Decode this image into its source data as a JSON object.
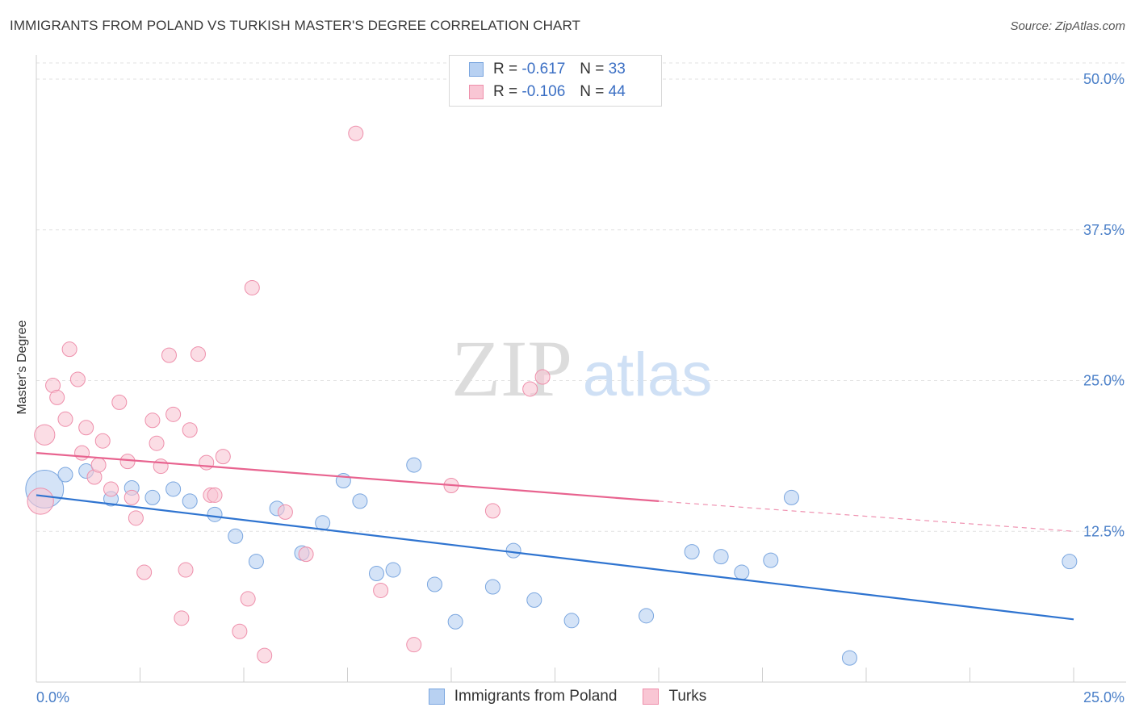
{
  "title": "IMMIGRANTS FROM POLAND VS TURKISH MASTER'S DEGREE CORRELATION CHART",
  "source": "Source: ZipAtlas.com",
  "watermark": {
    "zip": "ZIP",
    "atlas": "atlas"
  },
  "legend_top": [
    {
      "r_label": "R =",
      "r_value": "-0.617",
      "n_label": "N =",
      "n_value": "33",
      "color": "#b8d1f2",
      "border": "#7aa6df"
    },
    {
      "r_label": "R =",
      "r_value": "-0.106",
      "n_label": "N =",
      "n_value": "44",
      "color": "#f9c6d4",
      "border": "#ee8fab"
    }
  ],
  "chart_data": {
    "type": "scatter",
    "title": "IMMIGRANTS FROM POLAND VS TURKISH MASTER'S DEGREE CORRELATION CHART",
    "xlabel": "",
    "ylabel": "Master's Degree",
    "xlim": [
      0,
      25
    ],
    "ylim": [
      0,
      50
    ],
    "x_tick_labels": [
      "0.0%",
      "25.0%"
    ],
    "y_ticks": [
      12.5,
      25.0,
      37.5,
      50.0
    ],
    "y_tick_labels": [
      "12.5%",
      "25.0%",
      "37.5%",
      "50.0%"
    ],
    "grid": true,
    "series": [
      {
        "name": "Immigrants from Poland",
        "color": "#b8d1f2",
        "stroke": "#7aa6df",
        "line_color": "#2f74d0",
        "trend": {
          "x": [
            0,
            25
          ],
          "y": [
            15.5,
            5.2
          ]
        },
        "points": [
          [
            0.2,
            16.0,
            2.6
          ],
          [
            0.7,
            17.2,
            1
          ],
          [
            1.2,
            17.5,
            1
          ],
          [
            1.8,
            15.2,
            1
          ],
          [
            2.3,
            16.1,
            1
          ],
          [
            2.8,
            15.3,
            1
          ],
          [
            3.3,
            16.0,
            1
          ],
          [
            3.7,
            15.0,
            1
          ],
          [
            4.3,
            13.9,
            1
          ],
          [
            4.8,
            12.1,
            1
          ],
          [
            5.3,
            10.0,
            1
          ],
          [
            5.8,
            14.4,
            1
          ],
          [
            6.4,
            10.7,
            1
          ],
          [
            6.9,
            13.2,
            1
          ],
          [
            7.4,
            16.7,
            1
          ],
          [
            7.8,
            15.0,
            1
          ],
          [
            8.2,
            9.0,
            1
          ],
          [
            8.6,
            9.3,
            1
          ],
          [
            9.1,
            18.0,
            1
          ],
          [
            9.6,
            8.1,
            1
          ],
          [
            10.1,
            5.0,
            1
          ],
          [
            11.0,
            7.9,
            1
          ],
          [
            11.5,
            10.9,
            1
          ],
          [
            12.0,
            6.8,
            1
          ],
          [
            12.9,
            5.1,
            1
          ],
          [
            14.7,
            5.5,
            1
          ],
          [
            15.8,
            10.8,
            1
          ],
          [
            16.5,
            10.4,
            1
          ],
          [
            17.0,
            9.1,
            1
          ],
          [
            17.7,
            10.1,
            1
          ],
          [
            18.2,
            15.3,
            1
          ],
          [
            19.6,
            2.0,
            1
          ],
          [
            24.9,
            10.0,
            1
          ]
        ]
      },
      {
        "name": "Turks",
        "color": "#f9c6d4",
        "stroke": "#ee8fab",
        "line_color": "#e8638f",
        "trend": {
          "x": [
            0,
            15
          ],
          "y": [
            19.0,
            15.0
          ]
        },
        "trend_dashed": {
          "x": [
            15,
            25
          ],
          "y": [
            15.0,
            12.5
          ]
        },
        "points": [
          [
            0.1,
            15.0,
            1.8
          ],
          [
            0.2,
            20.5,
            1.4
          ],
          [
            0.4,
            24.6,
            1
          ],
          [
            0.5,
            23.6,
            1
          ],
          [
            0.7,
            21.8,
            1
          ],
          [
            0.8,
            27.6,
            1
          ],
          [
            1.0,
            25.1,
            1
          ],
          [
            1.1,
            19.0,
            1
          ],
          [
            1.2,
            21.1,
            1
          ],
          [
            1.4,
            17.0,
            1
          ],
          [
            1.5,
            18.0,
            1
          ],
          [
            1.6,
            20.0,
            1
          ],
          [
            1.8,
            16.0,
            1
          ],
          [
            2.0,
            23.2,
            1
          ],
          [
            2.2,
            18.3,
            1
          ],
          [
            2.3,
            15.3,
            1
          ],
          [
            2.4,
            13.6,
            1
          ],
          [
            2.6,
            9.1,
            1
          ],
          [
            2.8,
            21.7,
            1
          ],
          [
            2.9,
            19.8,
            1
          ],
          [
            3.0,
            17.9,
            1
          ],
          [
            3.2,
            27.1,
            1
          ],
          [
            3.3,
            22.2,
            1
          ],
          [
            3.5,
            5.3,
            1
          ],
          [
            3.6,
            9.3,
            1
          ],
          [
            3.7,
            20.9,
            1
          ],
          [
            3.9,
            27.2,
            1
          ],
          [
            4.1,
            18.2,
            1
          ],
          [
            4.2,
            15.5,
            1
          ],
          [
            4.3,
            15.5,
            1
          ],
          [
            4.5,
            18.7,
            1
          ],
          [
            4.9,
            4.2,
            1
          ],
          [
            5.1,
            6.9,
            1
          ],
          [
            5.2,
            32.7,
            1
          ],
          [
            5.5,
            2.2,
            1
          ],
          [
            6.0,
            14.1,
            1
          ],
          [
            6.5,
            10.6,
            1
          ],
          [
            7.7,
            45.5,
            1
          ],
          [
            8.3,
            7.6,
            1
          ],
          [
            9.1,
            3.1,
            1
          ],
          [
            10.0,
            16.3,
            1
          ],
          [
            11.0,
            14.2,
            1
          ],
          [
            11.9,
            24.3,
            1
          ],
          [
            12.2,
            25.3,
            1
          ]
        ]
      }
    ]
  },
  "legend_bottom": [
    {
      "label": "Immigrants from Poland",
      "color": "#b8d1f2",
      "border": "#7aa6df"
    },
    {
      "label": "Turks",
      "color": "#f9c6d4",
      "border": "#ee8fab"
    }
  ]
}
